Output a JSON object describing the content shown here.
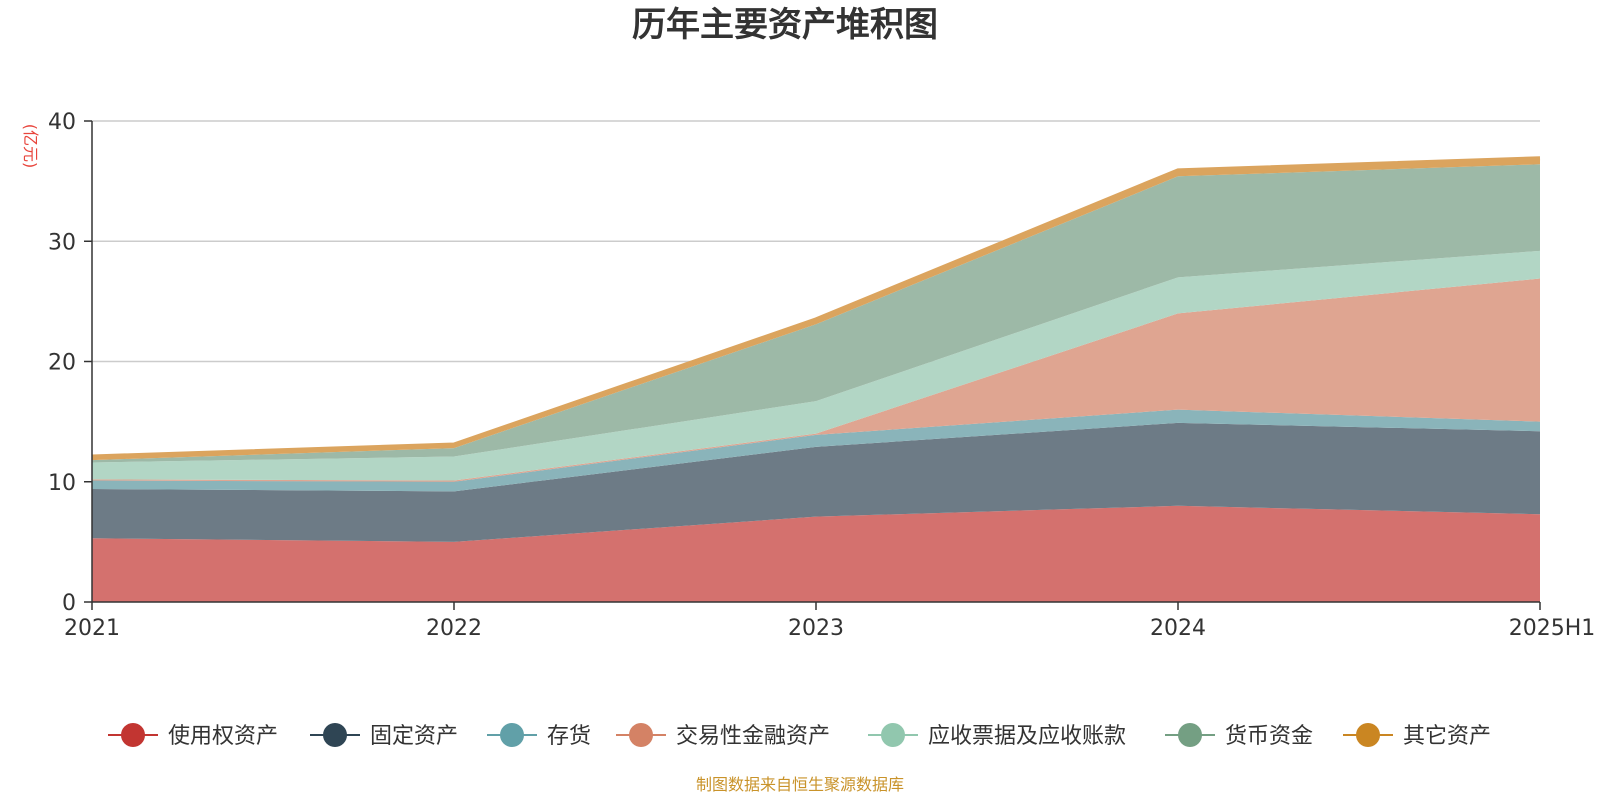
{
  "chart_data": {
    "type": "area",
    "stacked": true,
    "title": "历年主要资产堆积图",
    "ylabel": "(亿元)",
    "ylabel_color": "#e8453c",
    "xlabel": "",
    "categories": [
      "2021",
      "2022",
      "2023",
      "2024",
      "2025H1"
    ],
    "ylim": [
      0,
      40
    ],
    "yticks": [
      0,
      10,
      20,
      30,
      40
    ],
    "grid": true,
    "legend_position": "bottom",
    "series": [
      {
        "name": "使用权资产",
        "color": "#c23531",
        "fill": "#d4716e",
        "values": [
          5.3,
          5.0,
          7.1,
          8.0,
          7.3
        ]
      },
      {
        "name": "固定资产",
        "color": "#2f4554",
        "fill": "#6d7b86",
        "values": [
          4.1,
          4.2,
          5.8,
          6.9,
          6.9
        ]
      },
      {
        "name": "存货",
        "color": "#61a0a8",
        "fill": "#8ab4ba",
        "values": [
          0.7,
          0.8,
          1.0,
          1.1,
          0.8
        ]
      },
      {
        "name": "交易性金融资产",
        "color": "#d48265",
        "fill": "#dfa591",
        "values": [
          0.1,
          0.1,
          0.1,
          8.0,
          11.9
        ]
      },
      {
        "name": "应收票据及应收账款",
        "color": "#91c7ae",
        "fill": "#b2d6c5",
        "values": [
          1.4,
          2.0,
          2.7,
          3.0,
          2.3
        ]
      },
      {
        "name": "货币资金",
        "color": "#749f83",
        "fill": "#9db9a7",
        "values": [
          0.2,
          0.7,
          6.4,
          8.4,
          7.2
        ]
      },
      {
        "name": "其它资产",
        "color": "#ca8622",
        "fill": "#dba45e",
        "values": [
          0.3,
          0.3,
          0.4,
          0.5,
          0.5
        ]
      }
    ],
    "source": "制图数据来自恒生聚源数据库",
    "source_color": "#c9932a"
  }
}
